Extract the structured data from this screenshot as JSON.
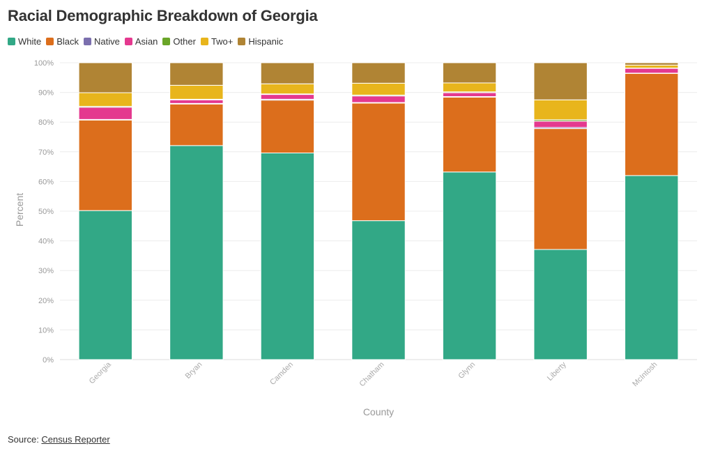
{
  "chart_data": {
    "type": "bar",
    "stacked": true,
    "title": "Racial Demographic Breakdown of Georgia",
    "xlabel": "County",
    "ylabel": "Percent",
    "ylim": [
      0,
      100
    ],
    "y_ticks": [
      "0%",
      "10%",
      "20%",
      "30%",
      "40%",
      "50%",
      "60%",
      "70%",
      "80%",
      "90%",
      "100%"
    ],
    "grid": true,
    "legend_position": "top-left",
    "categories": [
      "Georgia",
      "Bryan",
      "Camden",
      "Chatham",
      "Glynn",
      "Liberty",
      "McIntosh"
    ],
    "series": [
      {
        "name": "White",
        "color": "#32a886",
        "values": [
          50.2,
          72.1,
          69.6,
          46.8,
          63.2,
          37.1,
          62.0
        ]
      },
      {
        "name": "Black",
        "color": "#dc6e1c",
        "values": [
          30.5,
          14.0,
          17.8,
          39.6,
          25.2,
          40.7,
          34.4
        ]
      },
      {
        "name": "Native",
        "color": "#7b6fae",
        "values": [
          0.2,
          0.2,
          0.3,
          0.2,
          0.2,
          0.4,
          0.1
        ]
      },
      {
        "name": "Asian",
        "color": "#e4398f",
        "values": [
          4.1,
          1.2,
          1.6,
          2.2,
          1.3,
          2.1,
          1.6
        ]
      },
      {
        "name": "Other",
        "color": "#6aa528",
        "values": [
          0.3,
          0.2,
          0.2,
          0.3,
          0.3,
          0.5,
          0.1
        ]
      },
      {
        "name": "Two+",
        "color": "#e8b51c",
        "values": [
          4.6,
          4.7,
          3.4,
          4.0,
          3.0,
          6.7,
          1.0
        ]
      },
      {
        "name": "Hispanic",
        "color": "#b08434",
        "values": [
          10.1,
          7.6,
          7.1,
          6.9,
          6.8,
          12.5,
          0.8
        ]
      }
    ]
  },
  "source": {
    "label": "Source: ",
    "link_text": "Census Reporter"
  }
}
